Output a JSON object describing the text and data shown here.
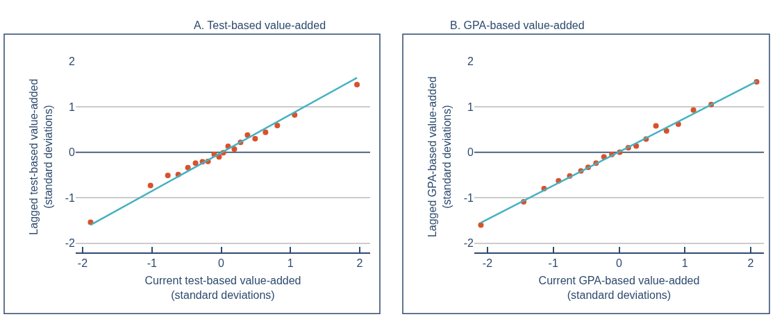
{
  "chart_data": [
    {
      "type": "scatter",
      "title": "A. Test-based value-added",
      "xlabel": "Current test-based value-added\n(standard deviations)",
      "ylabel": "Lagged test-based value-added\n(standard deviations)",
      "xlim": [
        -2.1,
        2.15
      ],
      "ylim": [
        -2.2,
        2
      ],
      "xticks": [
        -2,
        -1,
        0,
        1,
        2
      ],
      "yticks": [
        -2,
        -1,
        0,
        1,
        2
      ],
      "grid": "y",
      "ref_lines": [
        {
          "axis": "y",
          "value": 0,
          "color": "#2e4a6e"
        }
      ],
      "series": [
        {
          "type": "scatter",
          "marker": "circle",
          "color": "#d9512c",
          "x": [
            -1.885,
            -1.02,
            -0.77,
            -0.62,
            -0.48,
            -0.37,
            -0.27,
            -0.19,
            -0.1,
            -0.03,
            0.03,
            0.1,
            0.19,
            0.28,
            0.38,
            0.49,
            0.64,
            0.81,
            1.06,
            1.96
          ],
          "values": [
            -1.54,
            -0.73,
            -0.51,
            -0.49,
            -0.34,
            -0.24,
            -0.21,
            -0.2,
            -0.05,
            -0.1,
            -0.01,
            0.13,
            0.07,
            0.22,
            0.38,
            0.3,
            0.44,
            0.59,
            0.82,
            1.49
          ]
        },
        {
          "type": "line",
          "color": "#45b1c0",
          "x": [
            -1.885,
            1.96
          ],
          "values": [
            -1.6,
            1.64
          ]
        }
      ]
    },
    {
      "type": "scatter",
      "title": "B. GPA-based value-added",
      "xlabel": "Current GPA-based value-added\n(standard deviations)",
      "ylabel": "Lagged GPA-based value-added\n(standard deviations)",
      "xlim": [
        -2.2,
        2.2
      ],
      "ylim": [
        -2.2,
        2
      ],
      "xticks": [
        -2,
        -1,
        0,
        1,
        2
      ],
      "yticks": [
        -2,
        -1,
        0,
        1,
        2
      ],
      "grid": "y",
      "ref_lines": [
        {
          "axis": "y",
          "value": 0,
          "color": "#2e4a6e"
        }
      ],
      "series": [
        {
          "type": "scatter",
          "marker": "circle",
          "color": "#d9512c",
          "x": [
            -2.1,
            -1.45,
            -1.14,
            -0.92,
            -0.75,
            -0.58,
            -0.47,
            -0.35,
            -0.23,
            -0.11,
            0.01,
            0.14,
            0.26,
            0.41,
            0.56,
            0.72,
            0.9,
            1.13,
            1.4,
            2.09
          ],
          "values": [
            -1.6,
            -1.09,
            -0.8,
            -0.63,
            -0.52,
            -0.41,
            -0.33,
            -0.24,
            -0.1,
            -0.05,
            0.0,
            0.1,
            0.14,
            0.29,
            0.58,
            0.47,
            0.62,
            0.93,
            1.05,
            1.55
          ]
        },
        {
          "type": "line",
          "color": "#45b1c0",
          "x": [
            -2.1,
            2.09
          ],
          "values": [
            -1.55,
            1.56
          ]
        }
      ]
    }
  ]
}
